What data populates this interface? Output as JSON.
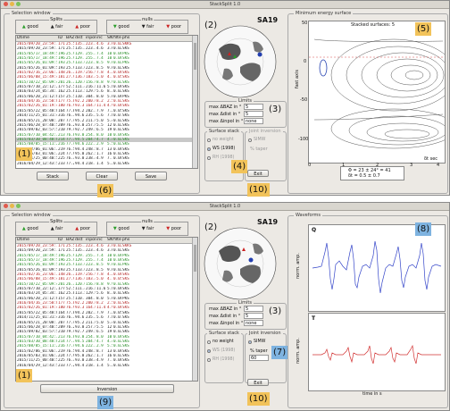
{
  "top": {
    "title": "StackSplit 1.0",
    "selection_title": "Selection window",
    "splits_label": "Splits",
    "nulls_label": "nulls",
    "legend_items": [
      "good",
      "fair",
      "poor"
    ],
    "columns": [
      "Dtime",
      "ID",
      "BAZ",
      "dist",
      "inpol",
      "inc",
      "SNR",
      "filter",
      "phs"
    ],
    "rows": [
      {
        "c": [
          "2015/09/20_23:59:10",
          "171",
          "25.5",
          "135.3",
          "223.3",
          "4.6",
          "3.6",
          "0.020-1.000",
          "SKKS"
        ],
        "col": "#b22222"
      },
      {
        "c": [
          "2015/09/20_23:59:10",
          "171",
          "25.5",
          "135.3",
          "223.3",
          "4.6",
          "3.6",
          "0.020-1.000",
          "SKS"
        ],
        "col": "#222"
      },
      {
        "c": [
          "2015/05/17_18:49:53",
          "196",
          "25.9",
          "129.7",
          "255.3",
          "7.4",
          "10.3",
          "0.067-0.200",
          "PKS"
        ],
        "col": "#228b22"
      },
      {
        "c": [
          "2015/05/17_18:49:53",
          "196",
          "25.9",
          "129.7",
          "255.3",
          "7.4",
          "10.3",
          "0.067-0.200",
          "SKS"
        ],
        "col": "#228b22"
      },
      {
        "c": [
          "2015/05/26_01:09:56",
          "193",
          "25.9",
          "133.6",
          "223.2",
          "8.5",
          "9.6",
          "0.020-1.000",
          "PKS"
        ],
        "col": "#228b22"
      },
      {
        "c": [
          "2015/05/26_01:09:56",
          "193",
          "25.9",
          "133.6",
          "223.2",
          "8.5",
          "9.6",
          "0.020-1.000",
          "SKS"
        ],
        "col": "#222"
      },
      {
        "c": [
          "2015/02/16_23:06:34",
          "148",
          "26.3",
          "119.9",
          "256.9",
          "7.8",
          "4.2",
          "0.067-0.200",
          "SKS"
        ],
        "col": "#b22222"
      },
      {
        "c": [
          "2015/06/08_15:49:43",
          "181",
          "27.9",
          "136.0",
          "183.4",
          "5.0",
          "4.1",
          "0.050-1.000",
          "SKS"
        ],
        "col": "#b22222"
      },
      {
        "c": [
          "2015/10/22_05:09:43",
          "201",
          "26.3",
          "120.0",
          "156.0",
          "8.8",
          "9.9",
          "0.020-1.000",
          "SKS"
        ],
        "col": "#228b22"
      },
      {
        "c": [
          "2015/07/10_22:12:27",
          "177",
          "52.5",
          "111.4",
          "216.8",
          "11.6",
          "5.8",
          "0.067-0.200",
          "SKS"
        ],
        "col": "#222"
      },
      {
        "c": [
          "2016/03/24_05:34:19",
          "162",
          "25.0",
          "113.5",
          "129.9",
          "5.6",
          "8.3",
          "0.020-1.000",
          "SKS"
        ],
        "col": "#222"
      },
      {
        "c": [
          "2015/06/20_21:12:06",
          "157",
          "25.5",
          "110.1",
          "304.7",
          "8.0",
          "5.6",
          "0.067-0.200",
          "PKS"
        ],
        "col": "#222"
      },
      {
        "c": [
          "2016/04/16_23:50:05",
          "177",
          "75.0",
          "92.2",
          "200.0",
          "8.2",
          "2.5",
          "0.020-1.000",
          "SKS"
        ],
        "col": "#b22222"
      },
      {
        "c": [
          "2015/02/26_01:19:43",
          "180",
          "76.9",
          "93.3",
          "164.6",
          "11.4",
          "4.9",
          "0.067-0.200",
          "SKS"
        ],
        "col": "#b22222"
      },
      {
        "c": [
          "2015/05/22_05:48:04",
          "164",
          "77.0",
          "94.2",
          "202.2",
          "7.9",
          "7.2",
          "0.050-0.200",
          "SKS"
        ],
        "col": "#222"
      },
      {
        "c": [
          "2014/11/25_01:31:40",
          "316",
          "76.7",
          "94.6",
          "235.3",
          "5.6",
          "7.8",
          "0.010-0.300",
          "SKS"
        ],
        "col": "#222"
      },
      {
        "c": [
          "2016/05/21_20:08:18",
          "207",
          "77.4",
          "95.2",
          "211.0",
          "5.0",
          "5.4",
          "0.020-1.000",
          "SKS"
        ],
        "col": "#222"
      },
      {
        "c": [
          "2015/06/28_07:40:59",
          "209",
          "76.2",
          "93.0",
          "257.6",
          "5.5",
          "12.7",
          "0.020-0.250",
          "SKS"
        ],
        "col": "#222"
      },
      {
        "c": [
          "2015/09/02_03:57:53",
          "210",
          "79.4",
          "92.7",
          "249.5",
          "6.5",
          "19.3",
          "0.020-1.000",
          "SKS"
        ],
        "col": "#222"
      },
      {
        "c": [
          "2015/07/10_04:42:31",
          "213",
          "76.0",
          "93.0",
          "254.7",
          "8.0",
          "10.4",
          "0.067-0.200",
          "SKS"
        ],
        "col": "#228b22"
      },
      {
        "c": [
          "2015/03/30_08:48:06",
          "214",
          "77.3",
          "94.5",
          "204.9",
          "4.7",
          "4.4",
          "0.020-1.000",
          "SKS"
        ],
        "col": "#228b22"
      },
      {
        "c": [
          "2015/08/05_15:11:22",
          "216",
          "77.4",
          "94.6",
          "222.2",
          "2.9",
          "5.5",
          "0.020-1.000",
          "SKS"
        ],
        "col": "#228b22"
      },
      {
        "c": [
          "2015/02/06_01:06:34",
          "219",
          "76.5",
          "94.4",
          "248.5",
          "8.7",
          "13.6",
          "0.067-0.200",
          "SKS"
        ],
        "col": "#222"
      },
      {
        "c": [
          "2016/05/03_01:06:34",
          "224",
          "77.9",
          "95.0",
          "262.5",
          "1.7",
          "16.9",
          "0.020-1.000",
          "SKS"
        ],
        "col": "#222"
      },
      {
        "c": [
          "2015/11/25_00:40:50",
          "225",
          "76.3",
          "93.0",
          "238.4",
          "4.9",
          "7.1",
          "0.067-0.200",
          "SKS"
        ],
        "col": "#222"
      },
      {
        "c": [
          "2016/04/29_12:43:58",
          "233",
          "77.2",
          "94.4",
          "218.1",
          "1.4",
          "5.2",
          "0.020-1.000",
          "SKS"
        ],
        "col": "#222"
      }
    ],
    "btn_stack": "Stack",
    "btn_clear": "Clear",
    "btn_save": "Save",
    "station": "SA19",
    "limits_label": "Limits",
    "max_baz_label": "max ΔBAZ in °",
    "max_baz": "5",
    "max_dist_label": "max Δdist in °",
    "max_dist": "5",
    "max_inpol_label": "max Δinpol in °",
    "max_inpol": "none",
    "surface_stack_label": "Surface stack",
    "no_weight": "no weight",
    "ws": "WS (1998)",
    "rh": "RH (1998)",
    "joint_inv_label": "Joint inversion",
    "simw": "SIMW",
    "taper_label": "% taper",
    "exit_label": "Exit",
    "energy_title": "Minimum energy surface",
    "stacked_label": "Stacked surfaces: 5",
    "y_axis": "fast axis",
    "x_axis": "δt sec",
    "x_ticks": [
      "0",
      "1",
      "2",
      "3",
      "4"
    ],
    "y_ticks": [
      "50",
      "0",
      "-50",
      "-100"
    ],
    "res1": "Φ = 23 ± 24° = 41",
    "res2": "δt = 0.5 ± 0.7",
    "badges": [
      "(1)",
      "(2)",
      "(3)",
      "(4)",
      "(5)",
      "(6)",
      "(10)"
    ]
  },
  "bottom": {
    "title": "StackSplit 1.0",
    "selection_title": "Selection window",
    "splits_label": "Splits",
    "nulls_label": "nulls",
    "legend_items": [
      "good",
      "fair",
      "poor"
    ],
    "columns": [
      "Dtime",
      "ID",
      "BAZ",
      "dist",
      "inpol",
      "inc",
      "SNR",
      "filter",
      "phs"
    ],
    "station": "SA19",
    "limits_label": "Limits",
    "max_baz_label": "max ΔBAZ in °",
    "max_baz": "5",
    "max_dist_label": "max Δdist in °",
    "max_dist": "5",
    "max_inpol_label": "max Δinpol in °",
    "max_inpol": "none",
    "surface_stack_label": "Surface stack",
    "no_weight": "no weight",
    "ws": "WS (1998)",
    "rh": "RH (1998)",
    "joint_inv_label": "Joint inversion",
    "simw": "SIMW",
    "taper_label": "% taper",
    "taper_val": "60",
    "btn_inversion": "Inversion",
    "exit_label": "Exit",
    "waveforms_title": "Waveforms",
    "q_label": "Q",
    "t_label": "T",
    "y_axis": "norm. amp.",
    "x_axis": "time in s",
    "badges": [
      "(1)",
      "(2)",
      "(3)",
      "(7)",
      "(8)",
      "(9)",
      "(10)"
    ]
  }
}
